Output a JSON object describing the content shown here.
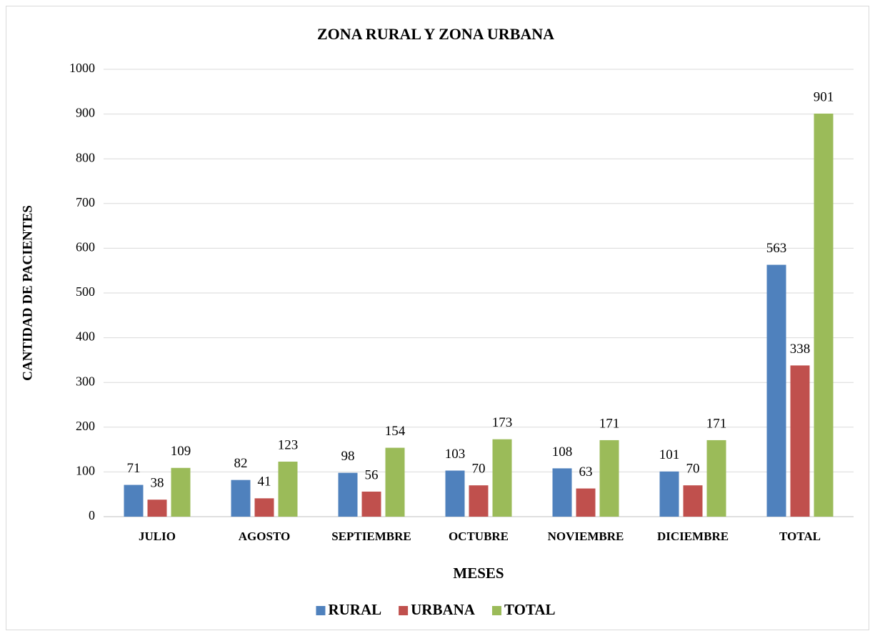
{
  "chart_data": {
    "type": "bar",
    "title": "ZONA RURAL Y ZONA URBANA",
    "x_label": "MESES",
    "y_label": "CANTIDAD DE PACIENTES",
    "categories": [
      "JULIO",
      "AGOSTO",
      "SEPTIEMBRE",
      "OCTUBRE",
      "NOVIEMBRE",
      "DICIEMBRE",
      "TOTAL"
    ],
    "series": [
      {
        "name": "RURAL",
        "color": "#4f81bd",
        "values": [
          71,
          82,
          98,
          103,
          108,
          101,
          563
        ]
      },
      {
        "name": "URBANA",
        "color": "#c0504d",
        "values": [
          38,
          41,
          56,
          70,
          63,
          70,
          338
        ]
      },
      {
        "name": "TOTAL",
        "color": "#9bbb59",
        "values": [
          109,
          123,
          154,
          173,
          171,
          171,
          901
        ]
      }
    ],
    "ylim": [
      0,
      1000
    ],
    "yticks": [
      0,
      100,
      200,
      300,
      400,
      500,
      600,
      700,
      800,
      900,
      1000
    ],
    "grid": true,
    "legend": "bottom"
  }
}
